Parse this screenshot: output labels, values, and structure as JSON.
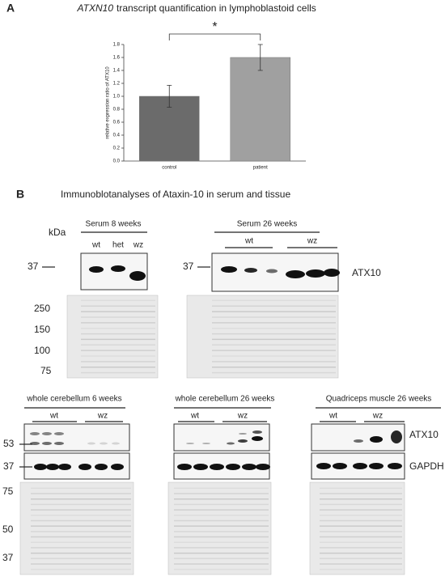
{
  "chart_data": {
    "type": "bar",
    "title_italic": "ATXN10",
    "title": "transcript quantification in lymphoblastoid cells",
    "ylabel": "relative expression ratio of ATX10",
    "categories": [
      "control",
      "patient"
    ],
    "values": [
      1.0,
      1.6
    ],
    "errors": [
      0.17,
      0.2
    ],
    "colors": [
      "#6b6b6b",
      "#a0a0a0"
    ],
    "ylim": [
      0,
      1.8
    ],
    "yticks": [
      {
        "value": 0,
        "label": "0.0"
      },
      0.2,
      0.4,
      0.6,
      0.8,
      {
        "value": 1,
        "label": "1.0"
      },
      1.2,
      1.4,
      1.6,
      1.8
    ],
    "annotation": "*"
  },
  "figure": {
    "panel_a_label": "A",
    "panel_b": {
      "label": "B",
      "title": "Immunoblotanalyses of Ataxin-10 in serum and tissue",
      "kda": "kDa",
      "serum8": {
        "title": "Serum 8 weeks",
        "lanes": [
          "wt",
          "het",
          "wz"
        ],
        "marker": 37,
        "gel_markers": [
          250,
          150,
          100,
          75
        ]
      },
      "serum26": {
        "title": "Serum 26 weeks",
        "groups": [
          "wt",
          "wz"
        ],
        "marker": 37,
        "protein": "ATX10"
      },
      "cb6": {
        "title": "whole cerebellum 6 weeks",
        "groups": [
          "wt",
          "wz"
        ],
        "markers": [
          53,
          37
        ],
        "gel_markers": [
          75,
          50,
          37
        ]
      },
      "cb26": {
        "title": "whole cerebellum 26 weeks",
        "groups": [
          "wt",
          "wz"
        ]
      },
      "qm26": {
        "title": "Quadriceps muscle 26 weeks",
        "groups": [
          "wt",
          "wz"
        ],
        "proteins": [
          "ATX10",
          "GAPDH"
        ]
      }
    }
  }
}
